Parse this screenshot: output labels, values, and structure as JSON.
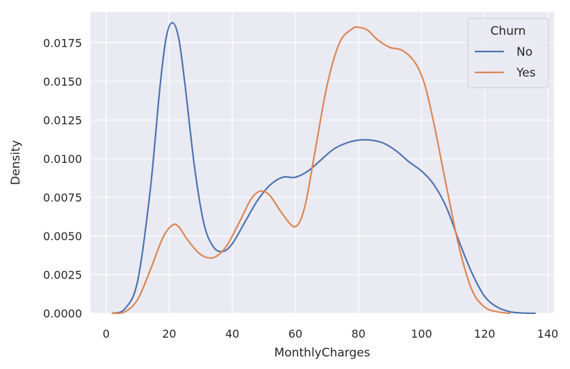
{
  "chart_data": {
    "type": "line",
    "xlabel": "MonthlyCharges",
    "ylabel": "Density",
    "xlim": [
      -5,
      142
    ],
    "ylim": [
      0,
      0.0195
    ],
    "xticks": [
      0,
      20,
      40,
      60,
      80,
      100,
      120,
      140
    ],
    "yticks": [
      0.0,
      0.0025,
      0.005,
      0.0075,
      0.01,
      0.0125,
      0.015,
      0.0175
    ],
    "ytick_labels": [
      "0.0000",
      "0.0025",
      "0.0050",
      "0.0075",
      "0.0100",
      "0.0125",
      "0.0150",
      "0.0175"
    ],
    "grid": true,
    "legend": {
      "title": "Churn",
      "placement": "top-right"
    },
    "series": [
      {
        "name": "No",
        "color": "#4c72b0",
        "x": [
          2,
          6,
          10,
          14,
          17,
          19,
          21,
          23,
          25,
          28,
          31,
          34,
          37,
          40,
          44,
          48,
          52,
          56,
          60,
          64,
          68,
          72,
          76,
          80,
          84,
          88,
          92,
          96,
          100,
          104,
          108,
          112,
          116,
          120,
          124,
          128,
          132,
          136
        ],
        "y": [
          0.0,
          0.0003,
          0.0021,
          0.008,
          0.0145,
          0.0178,
          0.0188,
          0.0178,
          0.0148,
          0.0095,
          0.0058,
          0.0043,
          0.004,
          0.0045,
          0.0059,
          0.0073,
          0.0083,
          0.0088,
          0.0088,
          0.0092,
          0.0099,
          0.0106,
          0.011,
          0.0112,
          0.0112,
          0.011,
          0.0105,
          0.0098,
          0.0092,
          0.0083,
          0.0068,
          0.0046,
          0.0026,
          0.0011,
          0.0004,
          0.0001,
          2e-05,
          0.0
        ]
      },
      {
        "name": "Yes",
        "color": "#dd8452",
        "x": [
          2,
          6,
          10,
          14,
          18,
          21,
          23,
          26,
          30,
          34,
          38,
          42,
          46,
          49,
          52,
          56,
          60,
          63,
          66,
          70,
          74,
          78,
          80,
          83,
          86,
          90,
          94,
          98,
          101,
          104,
          108,
          112,
          116,
          120,
          124,
          128
        ],
        "y": [
          0.0,
          0.0001,
          0.0009,
          0.0028,
          0.0049,
          0.0057,
          0.0056,
          0.0047,
          0.0038,
          0.0036,
          0.0043,
          0.0058,
          0.0074,
          0.0079,
          0.0076,
          0.0064,
          0.0056,
          0.0069,
          0.0102,
          0.0147,
          0.0175,
          0.0184,
          0.0185,
          0.0183,
          0.0177,
          0.0172,
          0.017,
          0.0162,
          0.0148,
          0.0122,
          0.0081,
          0.0042,
          0.0015,
          0.0004,
          0.0001,
          0.0
        ]
      }
    ]
  }
}
